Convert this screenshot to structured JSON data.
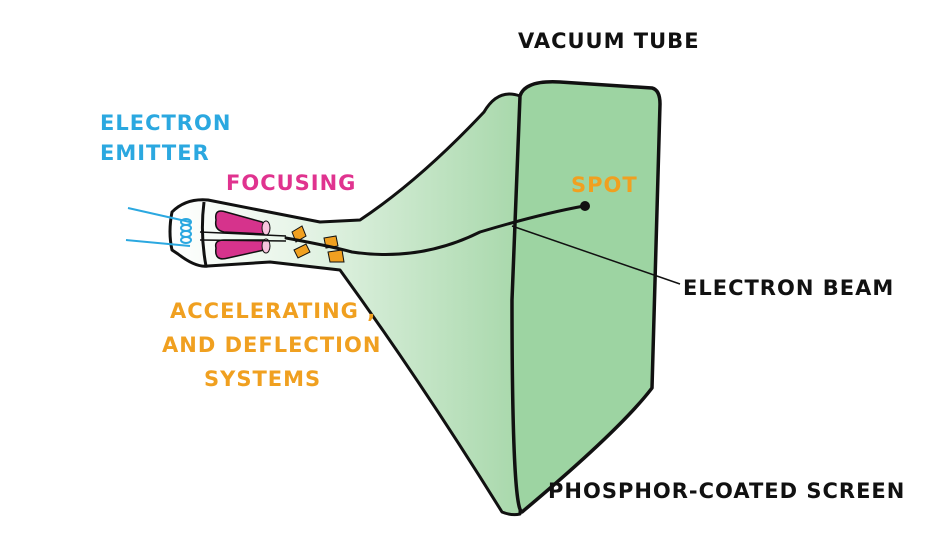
{
  "labels": {
    "vacuum_tube": "Vacuum Tube",
    "electron_emitter_line1": "Electron",
    "electron_emitter_line2": "Emitter",
    "focusing": "Focusing",
    "accelerating_line1": "Accelerating ,",
    "accelerating_line2": "And Deflection",
    "accelerating_line3": "Systems",
    "spot": "Spot",
    "electron_beam": "Electron Beam",
    "phosphor_screen": "Phosphor-Coated Screen"
  },
  "colors": {
    "outline": "#111111",
    "glass_green": "#9fd3a3",
    "screen_green": "#9dd4a2",
    "emitter_label": "#2ba8e0",
    "focusing_label": "#e0338f",
    "focusing_coil": "#d6338c",
    "accelerating_label": "#f0a020",
    "deflection_plate": "#f0a020",
    "spot_label": "#f0a020",
    "text_black": "#111111"
  }
}
